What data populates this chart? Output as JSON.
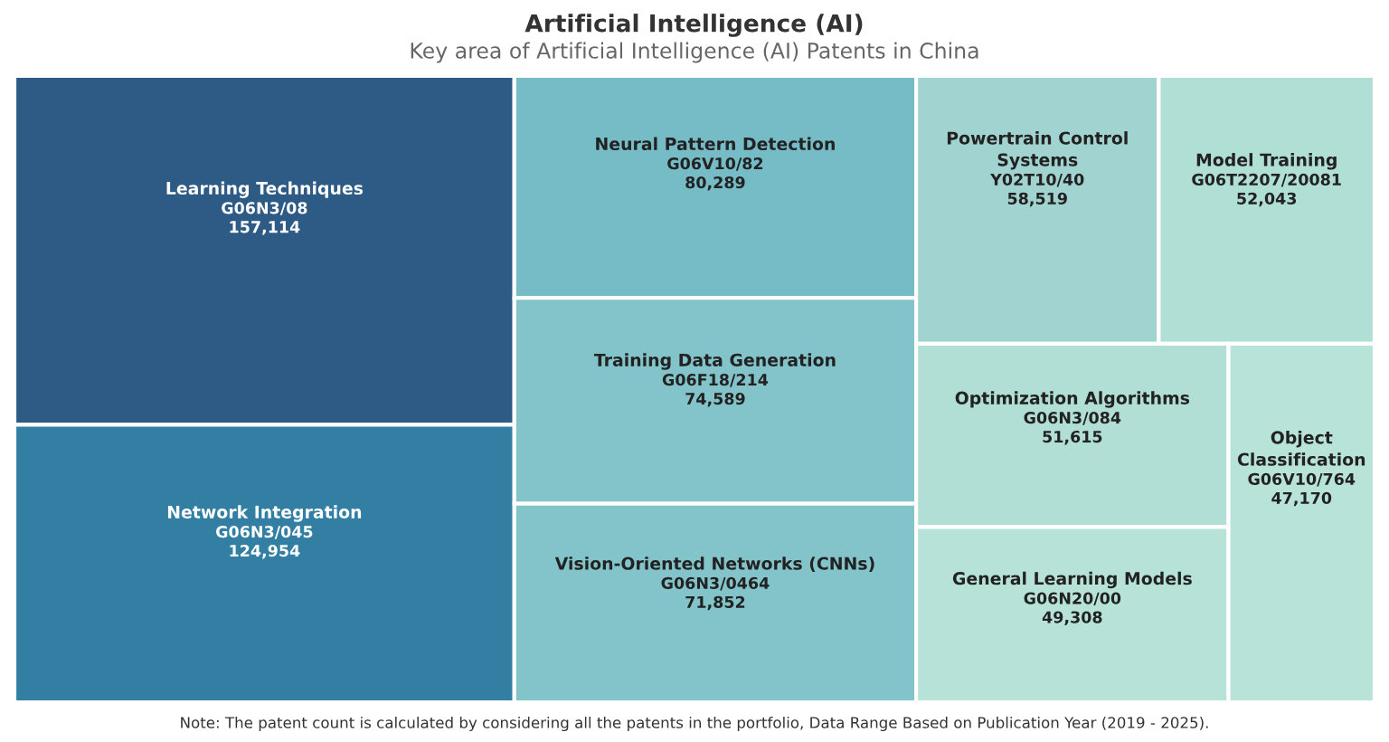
{
  "chart_data": {
    "type": "other",
    "title": "Artificial Intelligence (AI)",
    "subtitle": "Key area of Artificial Intelligence (AI) Patents in China",
    "categories": [
      "Learning Techniques\nG06N3/08",
      "Network Integration\nG06N3/045",
      "Neural Pattern Detection\nG06V10/82",
      "Training Data Generation\nG06F18/214",
      "Vision-Oriented Networks (CNNs)\nG06N3/0464",
      "Powertrain Control\nSystems\nY02T10/40",
      "Model Training\nG06T2207/20081",
      "Optimization Algorithms\nG06N3/084",
      "General Learning Models\nG06N20/00",
      "Object\nClassification\nG06V10/764"
    ],
    "values": [
      157114,
      124954,
      80289,
      74589,
      71852,
      58519,
      52043,
      51615,
      49308,
      47170
    ],
    "colors": [
      "#2d5b86",
      "#327fa3",
      "#76bcc7",
      "#83c4cb",
      "#83c4cb",
      "#a1d4d1",
      "#b0dfd6",
      "#b1dfd5",
      "#b6e2d8",
      "#b8e3d8"
    ],
    "value_labels": [
      "157,114",
      "124,954",
      "80,289",
      "74,589",
      "71,852",
      "58,519",
      "52,043",
      "51,615",
      "49,308",
      "47,170"
    ],
    "annotations": [
      "Note: The patent count is calculated by considering all the patents in the portfolio, Data Range Based on Publication Year (2019 - 2025)."
    ]
  }
}
